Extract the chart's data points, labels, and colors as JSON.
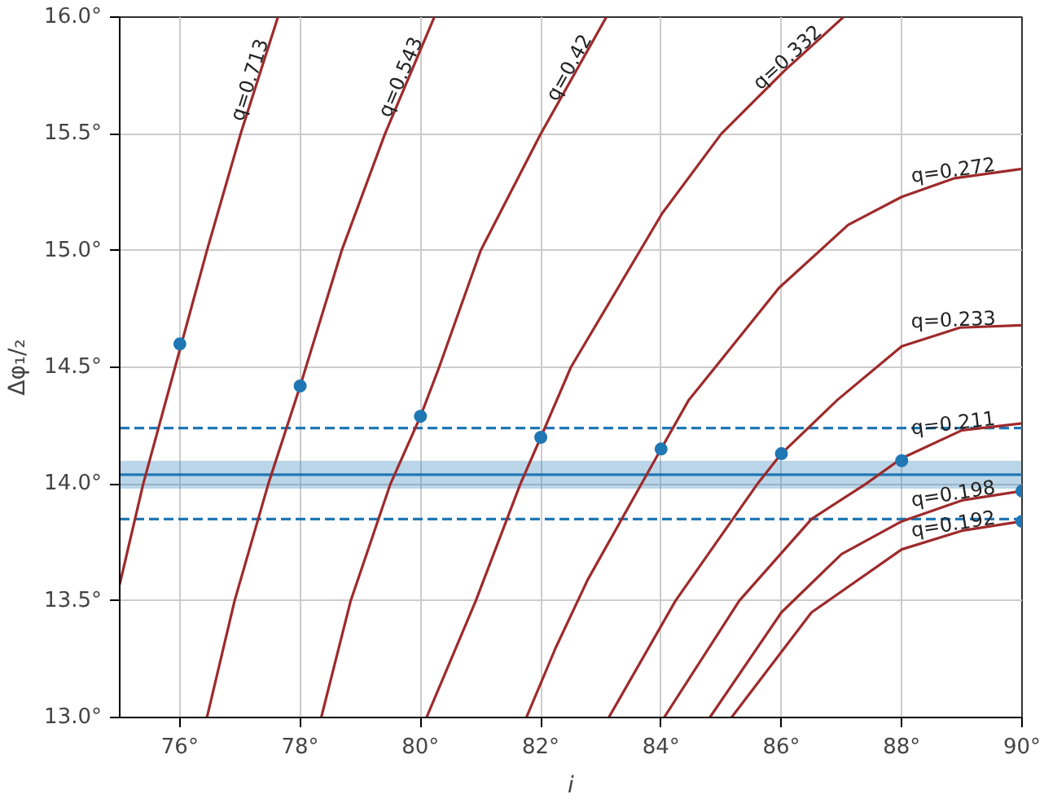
{
  "chart_data": {
    "type": "line",
    "xlabel": "i",
    "ylabel": "Δφ₁/₂",
    "xlim": [
      75,
      90
    ],
    "ylim": [
      13.0,
      16.0
    ],
    "xticks": [
      {
        "value": 76,
        "label": "76°"
      },
      {
        "value": 78,
        "label": "78°"
      },
      {
        "value": 80,
        "label": "80°"
      },
      {
        "value": 82,
        "label": "82°"
      },
      {
        "value": 84,
        "label": "84°"
      },
      {
        "value": 86,
        "label": "86°"
      },
      {
        "value": 88,
        "label": "88°"
      },
      {
        "value": 90,
        "label": "90°"
      }
    ],
    "yticks": [
      {
        "value": 13.0,
        "label": "13.0°"
      },
      {
        "value": 13.5,
        "label": "13.5°"
      },
      {
        "value": 14.0,
        "label": "14.0°"
      },
      {
        "value": 14.5,
        "label": "14.5°"
      },
      {
        "value": 15.0,
        "label": "15.0°"
      },
      {
        "value": 15.5,
        "label": "15.5°"
      },
      {
        "value": 16.0,
        "label": "16.0°"
      }
    ],
    "grid": true,
    "marker": "none",
    "line_style": "solid",
    "series": [
      {
        "name": "q=0.713",
        "color": "#9e2a2b",
        "x": [
          75,
          75.39,
          75.92,
          76.45,
          77.01,
          77.63
        ],
        "values": [
          13.57,
          14.0,
          14.5,
          15.0,
          15.5,
          16.0
        ]
      },
      {
        "name": "q=0.543",
        "color": "#9e2a2b",
        "x": [
          76.45,
          76.91,
          77.47,
          78,
          78.69,
          79.41,
          80.23
        ],
        "values": [
          13.0,
          13.5,
          14.0,
          14.42,
          15.0,
          15.5,
          16.0
        ]
      },
      {
        "name": "q=0.42",
        "color": "#9e2a2b",
        "x": [
          78.35,
          78.84,
          79.5,
          80,
          80.31,
          81.0,
          82.0,
          83.09
        ],
        "values": [
          13.0,
          13.5,
          14.0,
          14.29,
          14.5,
          15.0,
          15.5,
          16.0
        ]
      },
      {
        "name": "q=0.332",
        "color": "#9e2a2b",
        "x": [
          80.1,
          80.92,
          81.66,
          82,
          82.5,
          84.02,
          85.0,
          86.05,
          87.03
        ],
        "values": [
          13.0,
          13.5,
          14.0,
          14.2,
          14.5,
          15.16,
          15.5,
          15.77,
          16.0
        ]
      },
      {
        "name": "q=0.272",
        "color": "#9e2a2b",
        "x": [
          81.76,
          82.25,
          82.78,
          84,
          84.46,
          84.9,
          85.96,
          87.11,
          88,
          88.88,
          90
        ],
        "values": [
          13.0,
          13.3,
          13.59,
          14.15,
          14.36,
          14.5,
          14.84,
          15.11,
          15.23,
          15.31,
          15.35
        ]
      },
      {
        "name": "q=0.233",
        "color": "#9e2a2b",
        "x": [
          83.13,
          84.24,
          85.6,
          86,
          86.93,
          88,
          88.97,
          90
        ],
        "values": [
          13.0,
          13.5,
          14.0,
          14.13,
          14.36,
          14.59,
          14.67,
          14.68
        ]
      },
      {
        "name": "q=0.211",
        "color": "#9e2a2b",
        "x": [
          84.05,
          85.3,
          86.5,
          87.4,
          88,
          89,
          90
        ],
        "values": [
          13.0,
          13.5,
          13.85,
          14.0,
          14.11,
          14.23,
          14.26
        ]
      },
      {
        "name": "q=0.198",
        "color": "#9e2a2b",
        "x": [
          84.81,
          86.0,
          87.0,
          88.0,
          89.0,
          90
        ],
        "values": [
          13.0,
          13.45,
          13.7,
          13.84,
          13.93,
          13.97
        ]
      },
      {
        "name": "q=0.192",
        "color": "#9e2a2b",
        "x": [
          85.17,
          86.5,
          88.0,
          89.0,
          90
        ],
        "values": [
          13.0,
          13.45,
          13.72,
          13.8,
          13.84
        ]
      },
      {
        "type": "scatter",
        "marker": "circle",
        "color": "#1f77b4",
        "x": [
          76,
          78,
          80,
          82,
          84,
          86,
          88,
          90,
          90
        ],
        "values": [
          14.6,
          14.42,
          14.29,
          14.2,
          14.15,
          14.13,
          14.1,
          13.97,
          13.84
        ]
      }
    ],
    "ref_lines": [
      {
        "axis": "y",
        "value": 14.24,
        "color": "#1f77b4",
        "line_style": "dashed"
      },
      {
        "axis": "y",
        "value": 13.85,
        "color": "#1f77b4",
        "line_style": "dashed"
      },
      {
        "axis": "y",
        "value": 14.04,
        "color": "#1f77b4",
        "line_style": "solid"
      }
    ],
    "bands": [
      {
        "axis": "y",
        "from": 13.98,
        "to": 14.1,
        "color": "#1f77b4"
      }
    ]
  }
}
